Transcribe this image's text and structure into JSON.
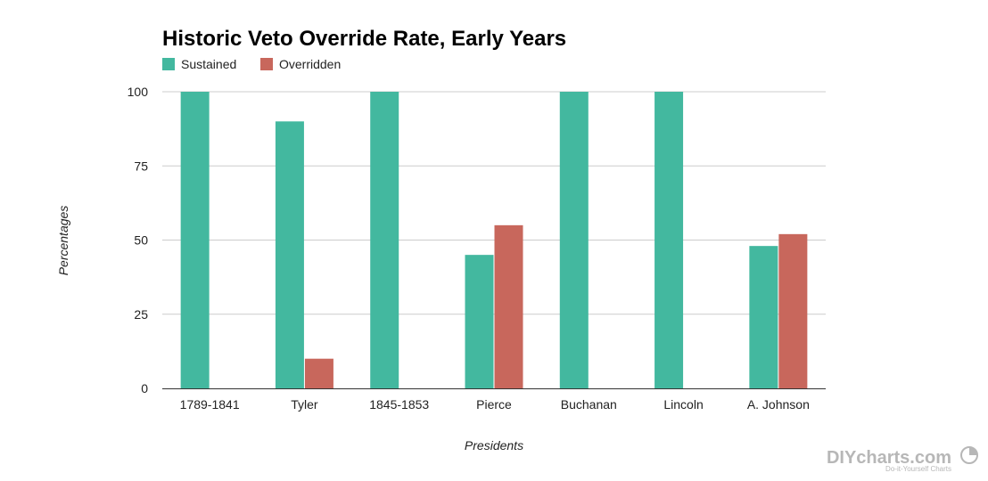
{
  "chart_data": {
    "type": "bar",
    "title": "Historic Veto Override Rate, Early Years",
    "xlabel": "Presidents",
    "ylabel": "Percentages",
    "categories": [
      "1789-1841",
      "Tyler",
      "1845-1853",
      "Pierce",
      "Buchanan",
      "Lincoln",
      "A. Johnson"
    ],
    "series": [
      {
        "name": "Sustained",
        "color": "#43b89f",
        "values": [
          100,
          90,
          100,
          45,
          100,
          100,
          48
        ]
      },
      {
        "name": "Overridden",
        "color": "#c8675c",
        "values": [
          0,
          10,
          0,
          55,
          0,
          0,
          52
        ]
      }
    ],
    "ylim": [
      0,
      100
    ],
    "yticks": [
      0,
      25,
      50,
      75,
      100
    ],
    "grid": true,
    "legend": "top-left"
  },
  "watermark": {
    "text": "DIYcharts.com",
    "subtext": "Do-it-Yourself Charts"
  }
}
